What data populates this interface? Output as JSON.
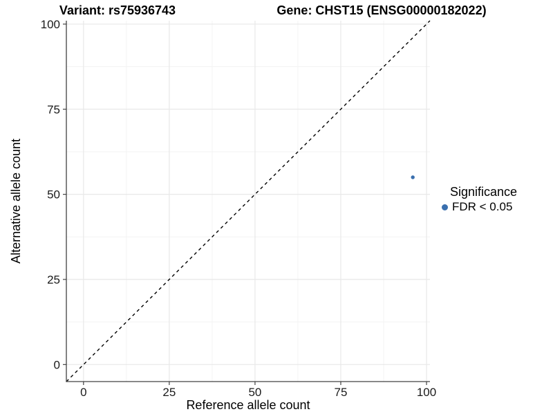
{
  "chart_data": {
    "type": "scatter",
    "titles": [
      "Variant: rs75936743",
      "Gene: CHST15 (ENSG00000182022)"
    ],
    "xlabel": "Reference allele count",
    "ylabel": "Alternative allele count",
    "xlim": [
      -5,
      101
    ],
    "ylim": [
      -5,
      101
    ],
    "x_ticks": [
      0,
      25,
      50,
      75,
      100
    ],
    "y_ticks": [
      0,
      25,
      50,
      75,
      100
    ],
    "x_minor_ticks": [
      12.5,
      37.5,
      62.5,
      87.5
    ],
    "y_minor_ticks": [
      12.5,
      37.5,
      62.5,
      87.5
    ],
    "grid": "on",
    "identity_line": {
      "slope": 1,
      "intercept": 0,
      "style": "dashed",
      "color": "#000000"
    },
    "series": [
      {
        "name": "FDR < 0.05",
        "color": "#3a6fae",
        "points": [
          {
            "x": 96,
            "y": 55
          }
        ]
      }
    ],
    "legend": {
      "position": "right",
      "title": "Significance",
      "items": [
        {
          "label": "FDR < 0.05",
          "color": "#3a6fae"
        }
      ]
    }
  },
  "colors": {
    "point": "#3a6fae",
    "grid_major": "#e8e8e8",
    "grid_minor": "#f3f3f3",
    "axis": "#404040",
    "tick_text": "#1a1a1a",
    "identity_line": "#000000"
  }
}
